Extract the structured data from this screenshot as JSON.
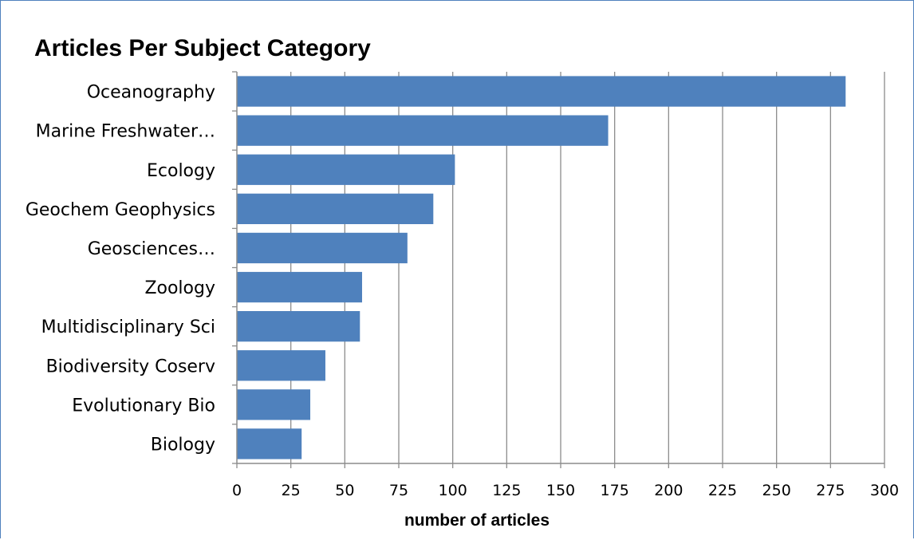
{
  "chart_data": {
    "type": "bar",
    "orientation": "horizontal",
    "title": "Articles Per Subject Category",
    "xlabel": "number of articles",
    "ylabel": "",
    "categories": [
      "Oceanography",
      "Marine Freshwater…",
      "Ecology",
      "Geochem Geophysics",
      "Geosciences…",
      "Zoology",
      "Multidisciplinary Sci",
      "Biodiversity Coserv",
      "Evolutionary Bio",
      "Biology"
    ],
    "values": [
      282,
      172,
      101,
      91,
      79,
      58,
      57,
      41,
      34,
      30
    ],
    "xlim": [
      0,
      300
    ],
    "xticks": [
      0,
      25,
      50,
      75,
      100,
      125,
      150,
      175,
      200,
      225,
      250,
      275,
      300
    ],
    "grid": "vertical",
    "bar_color": "#4f81bd",
    "grid_color": "#8c8c8c",
    "frame_color": "#4f81bd"
  }
}
